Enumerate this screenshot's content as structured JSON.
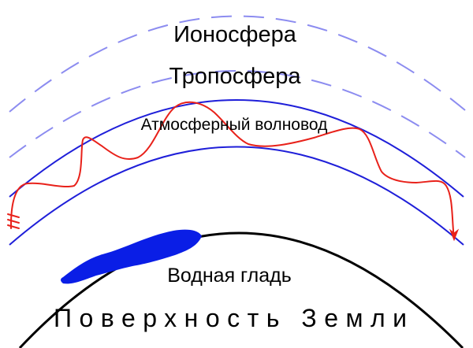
{
  "labels": {
    "ionosphere": "Ионосфера",
    "troposphere": "Тропосфера",
    "waveguide": "Атмосферный волновод",
    "water": "Водная гладь",
    "surface": "Поверхность Земли"
  },
  "colors": {
    "layer_dashed": "#8c8cf0",
    "waveguide_boundary": "#1f1fd9",
    "wave_path": "#e8211a",
    "water": "#0a1ee6",
    "earth_surface": "#000000",
    "text": "#000000"
  },
  "icons": {
    "wave_end_left": "arrow-down-icon",
    "wave_end_right": "arrow-down-icon"
  }
}
